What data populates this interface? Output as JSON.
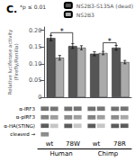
{
  "chart_data": [
    {
      "type": "bar",
      "title": "C.",
      "ylabel": "Relative luciferase activity\n(Firefly/Renilla)",
      "categories": [
        "wt",
        "78W",
        "wt",
        "78R"
      ],
      "series": [
        {
          "name": "NS2B3-S135A (dead)",
          "color": "#555555",
          "values": [
            0.177,
            0.153,
            0.13,
            0.148
          ],
          "errors": [
            0.008,
            0.007,
            0.006,
            0.007
          ]
        },
        {
          "name": "NS2B3",
          "color": "#aaaaaa",
          "values": [
            0.118,
            0.148,
            0.132,
            0.105
          ],
          "errors": [
            0.007,
            0.006,
            0.005,
            0.005
          ]
        }
      ],
      "ylim": [
        0,
        0.21
      ],
      "yticks": [
        0,
        0.05,
        {
          "value": 0.1,
          "label": "0.10"
        },
        0.15,
        {
          "value": 0.2,
          "label": "0.20"
        }
      ],
      "grid": false,
      "legend": "upper right",
      "tick_labels": "y",
      "annotations": [
        "*p ≤ 0.01"
      ],
      "brackets": [
        {
          "label": "*",
          "y": 0.193,
          "from": {
            "category": 0,
            "series": 0,
            "y": 0.183
          },
          "to": {
            "category": 1,
            "series": 0,
            "y": 0.16
          }
        },
        {
          "label": "*",
          "y": 0.163,
          "from": {
            "category": 2,
            "series": 1,
            "y": 0.138
          },
          "to": {
            "category": 3,
            "series": 0,
            "y": 0.153
          }
        }
      ]
    },
    {
      "type": "heatmap",
      "categories": [
        "wt",
        "78W",
        "wt",
        "78R"
      ],
      "groups": [
        "Human",
        "Chimp"
      ],
      "rows": [
        "α-IRF3",
        "α-pIRF3",
        "α-HA(STING)",
        "cleaved →"
      ],
      "values": [
        [
          0.75,
          0.72,
          0.74,
          0.73,
          0.74,
          0.72,
          0.74,
          0.73
        ],
        [
          0.65,
          0.5,
          0.6,
          0.5,
          0.65,
          0.5,
          0.6,
          0.45
        ],
        [
          0.85,
          0.3,
          0.85,
          0.3,
          0.85,
          0.3,
          0.85,
          0.85
        ],
        [
          0.6,
          0.0,
          0.0,
          0.0,
          0.0,
          0.0,
          0.0,
          0.0
        ]
      ]
    }
  ]
}
